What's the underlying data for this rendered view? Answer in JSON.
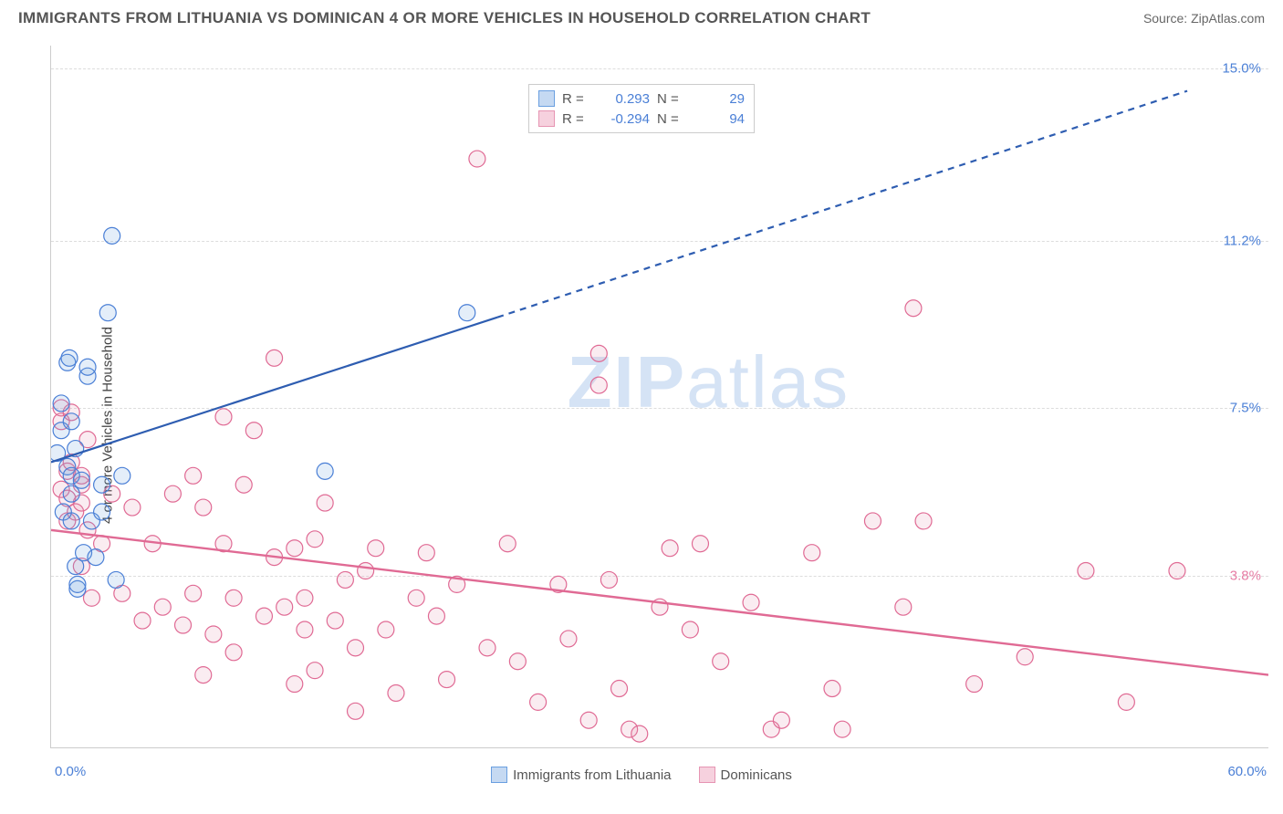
{
  "title": "IMMIGRANTS FROM LITHUANIA VS DOMINICAN 4 OR MORE VEHICLES IN HOUSEHOLD CORRELATION CHART",
  "source_prefix": "Source: ",
  "source_site": "ZipAtlas.com",
  "ylabel": "4 or more Vehicles in Household",
  "watermark": "ZIPatlas",
  "chart": {
    "type": "scatter",
    "xlim": [
      0,
      60
    ],
    "ylim": [
      0,
      15.5
    ],
    "x_min_label": "0.0%",
    "x_max_label": "60.0%",
    "yticks": [
      {
        "value": 3.8,
        "label": "3.8%",
        "color": "#e67da4"
      },
      {
        "value": 7.5,
        "label": "7.5%",
        "color": "#4a7fd6"
      },
      {
        "value": 11.2,
        "label": "11.2%",
        "color": "#4a7fd6"
      },
      {
        "value": 15.0,
        "label": "15.0%",
        "color": "#4a7fd6"
      }
    ],
    "background_color": "#ffffff",
    "grid_color": "#dddddd",
    "marker_radius": 9,
    "marker_stroke_width": 1.2,
    "marker_fill_opacity": 0.18,
    "series": [
      {
        "name": "Immigrants from Lithuania",
        "legend_label": "Immigrants from Lithuania",
        "swatch_fill": "#c5d9f2",
        "swatch_border": "#6a9fe0",
        "marker_fill": "#6a9fe0",
        "marker_stroke": "#4a7fd6",
        "R_label": "R =",
        "R": "0.293",
        "N_label": "N =",
        "N": "29",
        "value_color": "#4a7fd6",
        "trend": {
          "x1": 0,
          "y1": 6.3,
          "x2": 22,
          "y2": 9.5,
          "dash_x2": 56,
          "dash_y2": 14.5,
          "color": "#2e5db1",
          "width": 2.2
        },
        "points": [
          [
            0.3,
            6.5
          ],
          [
            0.5,
            7.0
          ],
          [
            0.5,
            7.6
          ],
          [
            0.6,
            5.2
          ],
          [
            0.8,
            6.2
          ],
          [
            0.8,
            8.5
          ],
          [
            0.9,
            8.6
          ],
          [
            1.0,
            5.0
          ],
          [
            1.0,
            5.6
          ],
          [
            1.0,
            6.0
          ],
          [
            1.0,
            7.2
          ],
          [
            1.2,
            4.0
          ],
          [
            1.2,
            6.6
          ],
          [
            1.3,
            3.5
          ],
          [
            1.3,
            3.6
          ],
          [
            1.5,
            5.9
          ],
          [
            1.6,
            4.3
          ],
          [
            1.8,
            8.2
          ],
          [
            1.8,
            8.4
          ],
          [
            2.0,
            5.0
          ],
          [
            2.2,
            4.2
          ],
          [
            2.5,
            5.2
          ],
          [
            2.5,
            5.8
          ],
          [
            2.8,
            9.6
          ],
          [
            3.0,
            11.3
          ],
          [
            3.2,
            3.7
          ],
          [
            3.5,
            6.0
          ],
          [
            13.5,
            6.1
          ],
          [
            20.5,
            9.6
          ]
        ]
      },
      {
        "name": "Dominicans",
        "legend_label": "Dominicans",
        "swatch_fill": "#f6d1de",
        "swatch_border": "#e695b3",
        "marker_fill": "#e695b3",
        "marker_stroke": "#e06a94",
        "R_label": "R =",
        "R": "-0.294",
        "N_label": "N =",
        "N": "94",
        "value_color": "#4a7fd6",
        "trend": {
          "x1": 0,
          "y1": 4.8,
          "x2": 60,
          "y2": 1.6,
          "color": "#e06a94",
          "width": 2.4
        },
        "points": [
          [
            0.5,
            5.7
          ],
          [
            0.5,
            7.2
          ],
          [
            0.5,
            7.5
          ],
          [
            0.8,
            5.0
          ],
          [
            0.8,
            5.5
          ],
          [
            0.8,
            6.1
          ],
          [
            1.0,
            6.3
          ],
          [
            1.0,
            7.4
          ],
          [
            1.2,
            5.2
          ],
          [
            1.5,
            4.0
          ],
          [
            1.5,
            5.4
          ],
          [
            1.5,
            5.8
          ],
          [
            1.5,
            6.0
          ],
          [
            1.8,
            4.8
          ],
          [
            1.8,
            6.8
          ],
          [
            2.0,
            3.3
          ],
          [
            2.5,
            4.5
          ],
          [
            3.0,
            5.6
          ],
          [
            3.5,
            3.4
          ],
          [
            4.0,
            5.3
          ],
          [
            4.5,
            2.8
          ],
          [
            5.0,
            4.5
          ],
          [
            5.5,
            3.1
          ],
          [
            6.0,
            5.6
          ],
          [
            6.5,
            2.7
          ],
          [
            7.0,
            3.4
          ],
          [
            7.0,
            6.0
          ],
          [
            7.5,
            1.6
          ],
          [
            7.5,
            5.3
          ],
          [
            8.0,
            2.5
          ],
          [
            8.5,
            4.5
          ],
          [
            8.5,
            7.3
          ],
          [
            9.0,
            2.1
          ],
          [
            9.0,
            3.3
          ],
          [
            9.5,
            5.8
          ],
          [
            10.0,
            7.0
          ],
          [
            10.5,
            2.9
          ],
          [
            11.0,
            4.2
          ],
          [
            11.0,
            8.6
          ],
          [
            11.5,
            3.1
          ],
          [
            12.0,
            1.4
          ],
          [
            12.0,
            4.4
          ],
          [
            12.5,
            2.6
          ],
          [
            12.5,
            3.3
          ],
          [
            13.0,
            1.7
          ],
          [
            13.0,
            4.6
          ],
          [
            13.5,
            5.4
          ],
          [
            14.0,
            2.8
          ],
          [
            14.5,
            3.7
          ],
          [
            15.0,
            0.8
          ],
          [
            15.0,
            2.2
          ],
          [
            15.5,
            3.9
          ],
          [
            16.0,
            4.4
          ],
          [
            16.5,
            2.6
          ],
          [
            17.0,
            1.2
          ],
          [
            18.0,
            3.3
          ],
          [
            18.5,
            4.3
          ],
          [
            19.0,
            2.9
          ],
          [
            19.5,
            1.5
          ],
          [
            20.0,
            3.6
          ],
          [
            21.0,
            13.0
          ],
          [
            21.5,
            2.2
          ],
          [
            22.5,
            4.5
          ],
          [
            23.0,
            1.9
          ],
          [
            24.0,
            1.0
          ],
          [
            25.0,
            3.6
          ],
          [
            25.5,
            2.4
          ],
          [
            26.5,
            0.6
          ],
          [
            27.0,
            8.0
          ],
          [
            27.0,
            8.7
          ],
          [
            27.5,
            3.7
          ],
          [
            28.0,
            1.3
          ],
          [
            28.5,
            0.4
          ],
          [
            29.0,
            0.3
          ],
          [
            30.0,
            3.1
          ],
          [
            30.5,
            4.4
          ],
          [
            31.5,
            2.6
          ],
          [
            32.0,
            4.5
          ],
          [
            33.0,
            1.9
          ],
          [
            34.5,
            3.2
          ],
          [
            35.5,
            0.4
          ],
          [
            36.0,
            0.6
          ],
          [
            37.5,
            4.3
          ],
          [
            38.5,
            1.3
          ],
          [
            39.0,
            0.4
          ],
          [
            40.5,
            5.0
          ],
          [
            42.0,
            3.1
          ],
          [
            42.5,
            9.7
          ],
          [
            43.0,
            5.0
          ],
          [
            45.5,
            1.4
          ],
          [
            48.0,
            2.0
          ],
          [
            51.0,
            3.9
          ],
          [
            53.0,
            1.0
          ],
          [
            55.5,
            3.9
          ]
        ]
      }
    ]
  }
}
